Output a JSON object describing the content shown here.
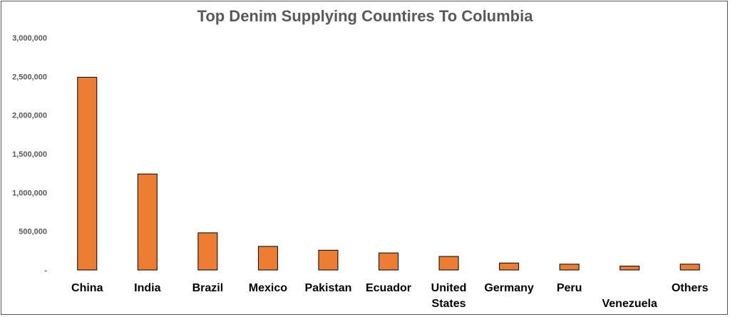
{
  "chart_data": {
    "type": "bar",
    "title": "Top Denim Supplying Countires To Columbia",
    "xlabel": "",
    "ylabel": "",
    "categories": [
      [
        "China"
      ],
      [
        "India"
      ],
      [
        "Brazil"
      ],
      [
        "Mexico"
      ],
      [
        "Pakistan"
      ],
      [
        "Ecuador"
      ],
      [
        "United",
        "States"
      ],
      [
        "Germany"
      ],
      [
        "Peru"
      ],
      [
        "",
        "Venezuela"
      ],
      [
        "Others"
      ]
    ],
    "values": [
      2490000,
      1240000,
      480000,
      305000,
      255000,
      220000,
      175000,
      90000,
      75000,
      50000,
      75000
    ],
    "ylim": [
      0,
      3000000
    ],
    "yticks": [
      0,
      500000,
      1000000,
      1500000,
      2000000,
      2500000,
      3000000
    ],
    "ytick_labels": [
      "-",
      "500,000",
      "1,000,000",
      "1,500,000",
      "2,000,000",
      "2,500,000",
      "3,000,000"
    ],
    "grid": false,
    "legend": "none",
    "bar_color": "#ED7D31",
    "bar_edge_color": "#000000"
  }
}
